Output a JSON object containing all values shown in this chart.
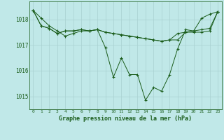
{
  "title": "Graphe pression niveau de la mer (hPa)",
  "background_color": "#c0e8e8",
  "grid_color": "#a8d0d0",
  "line_color": "#1a5c1a",
  "xlim": [
    -0.5,
    23.5
  ],
  "ylim": [
    1014.5,
    1018.7
  ],
  "yticks": [
    1015,
    1016,
    1017,
    1018
  ],
  "xticks": [
    0,
    1,
    2,
    3,
    4,
    5,
    6,
    7,
    8,
    9,
    10,
    11,
    12,
    13,
    14,
    15,
    16,
    17,
    18,
    19,
    20,
    21,
    22,
    23
  ],
  "series": [
    [
      1018.35,
      1018.05,
      1017.75,
      1017.55,
      1017.35,
      1017.45,
      1017.55,
      1017.55,
      1017.6,
      1016.9,
      1015.75,
      1016.5,
      1015.85,
      1015.85,
      1014.85,
      1015.35,
      1015.2,
      1015.85,
      1016.85,
      1017.6,
      1017.55,
      1018.05,
      1018.2,
      1018.3
    ],
    [
      1018.35,
      1017.75,
      1017.65,
      1017.45,
      1017.55,
      1017.55,
      1017.6,
      1017.55,
      1017.6,
      1017.5,
      1017.45,
      1017.4,
      1017.35,
      1017.3,
      1017.25,
      1017.2,
      1017.15,
      1017.2,
      1017.2,
      1017.5,
      1017.5,
      1017.5,
      1017.55,
      1018.3
    ],
    [
      1018.35,
      1017.75,
      1017.65,
      1017.45,
      1017.55,
      1017.55,
      1017.6,
      1017.55,
      1017.6,
      1017.5,
      1017.45,
      1017.4,
      1017.35,
      1017.3,
      1017.25,
      1017.2,
      1017.15,
      1017.2,
      1017.45,
      1017.5,
      1017.55,
      1017.6,
      1017.65,
      1018.3
    ]
  ]
}
